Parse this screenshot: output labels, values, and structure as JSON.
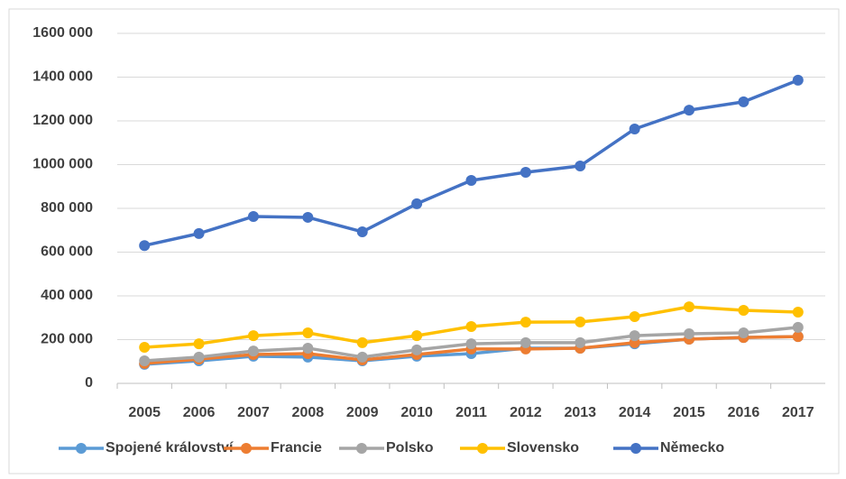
{
  "chart_data": {
    "type": "line",
    "categories": [
      "2005",
      "2006",
      "2007",
      "2008",
      "2009",
      "2010",
      "2011",
      "2012",
      "2013",
      "2014",
      "2015",
      "2016",
      "2017"
    ],
    "series": [
      {
        "name": "Spojené království",
        "color": "#5b9bd5",
        "values": [
          87000,
          103000,
          124000,
          120000,
          103000,
          124000,
          136000,
          161000,
          161000,
          181000,
          202000,
          210000,
          214000
        ]
      },
      {
        "name": "Francie",
        "color": "#ed7d31",
        "values": [
          91000,
          111000,
          132000,
          136000,
          107000,
          132000,
          157000,
          157000,
          161000,
          186000,
          202000,
          210000,
          214000
        ]
      },
      {
        "name": "Polsko",
        "color": "#a5a5a5",
        "values": [
          103000,
          120000,
          148000,
          161000,
          120000,
          153000,
          181000,
          186000,
          186000,
          218000,
          227000,
          231000,
          256000
        ]
      },
      {
        "name": "Slovensko",
        "color": "#ffc000",
        "values": [
          165000,
          181000,
          218000,
          231000,
          186000,
          218000,
          260000,
          280000,
          281000,
          305000,
          350000,
          334000,
          326000
        ]
      },
      {
        "name": "Německo",
        "color": "#4472c4",
        "values": [
          630000,
          685000,
          763000,
          759000,
          693000,
          821000,
          928000,
          965000,
          994000,
          1163000,
          1249000,
          1287000,
          1386000
        ]
      }
    ],
    "ylim": [
      0,
      1600000
    ],
    "yticks": [
      0,
      {
        "value": 200000,
        "label": "200 000"
      },
      {
        "value": 400000,
        "label": "400 000"
      },
      {
        "value": 600000,
        "label": "600 000"
      },
      {
        "value": 800000,
        "label": "800 000"
      },
      {
        "value": 1000000,
        "label": "1000 000"
      },
      {
        "value": 1200000,
        "label": "1200 000"
      },
      {
        "value": 1400000,
        "label": "1400 000"
      },
      {
        "value": 1600000,
        "label": "1600 000"
      }
    ],
    "grid": true,
    "legend": "bottom"
  }
}
